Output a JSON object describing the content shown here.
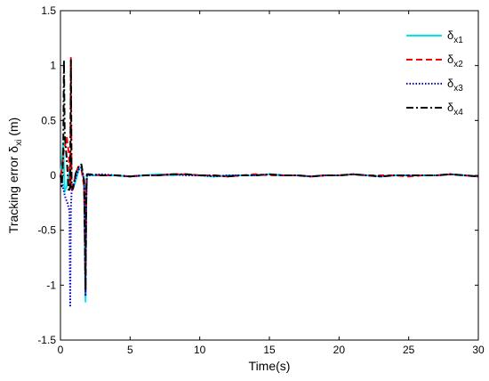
{
  "chart_data": {
    "type": "line",
    "xlabel": "Time(s)",
    "ylabel_main": "Tracking error δ",
    "ylabel_sub": "xi",
    "ylabel_unit": "(m)",
    "xlim": [
      0,
      30
    ],
    "ylim": [
      -1.5,
      1.5
    ],
    "xticks": [
      0,
      5,
      10,
      15,
      20,
      25,
      30
    ],
    "yticks": [
      -1.5,
      -1,
      -0.5,
      0,
      0.5,
      1,
      1.5
    ],
    "xtick_labels": [
      "0",
      "5",
      "10",
      "15",
      "20",
      "25",
      "30"
    ],
    "ytick_labels": [
      "-1.5",
      "-1",
      "-0.5",
      "0",
      "0.5",
      "1",
      "1.5"
    ],
    "grid": false,
    "legend_position": "top-right",
    "series": [
      {
        "name": "δx1",
        "name_main": "δ",
        "name_sub": "x1",
        "color": "#00e5ee",
        "dash": "solid",
        "x": [
          0,
          0.1,
          0.2,
          0.3,
          0.45,
          0.6,
          0.75,
          0.9,
          1.1,
          1.3,
          1.5,
          1.7,
          1.8,
          1.85,
          1.9,
          2.0,
          3.0,
          4.0,
          5.0,
          6.0,
          7.0,
          8.0,
          9.0,
          10.0,
          11.0,
          12.0,
          13.0,
          14.0,
          15.0,
          16.0,
          17.0,
          18.0,
          19.0,
          20.0,
          21.0,
          22.0,
          23.0,
          24.0,
          25.0,
          26.0,
          27.0,
          28.0,
          29.0,
          30.0
        ],
        "y": [
          0,
          0.12,
          0.3,
          -0.15,
          -0.1,
          0.02,
          -0.05,
          -0.12,
          -0.05,
          0.05,
          0.08,
          -0.05,
          -1.15,
          -0.3,
          0.01,
          0.0,
          0.0,
          0.0,
          -0.01,
          0.0,
          0.01,
          0.0,
          0.01,
          0.0,
          -0.01,
          0.0,
          0.0,
          0.0,
          0.01,
          0.0,
          0.0,
          -0.01,
          0.0,
          0.0,
          0.01,
          0.0,
          -0.01,
          0.0,
          0.0,
          0.0,
          0.0,
          0.01,
          0.0,
          -0.01
        ]
      },
      {
        "name": "δx2",
        "name_main": "δ",
        "name_sub": "x2",
        "color": "#ff0000",
        "dash": "dashed",
        "x": [
          0,
          0.1,
          0.2,
          0.3,
          0.45,
          0.6,
          0.7,
          0.75,
          0.8,
          0.9,
          1.1,
          1.3,
          1.5,
          1.7,
          1.8,
          1.85,
          1.9,
          2.0,
          3.0,
          4.0,
          5.0,
          6.0,
          7.0,
          8.0,
          9.0,
          10.0,
          11.0,
          12.0,
          13.0,
          14.0,
          15.0,
          16.0,
          17.0,
          18.0,
          19.0,
          20.0,
          21.0,
          22.0,
          23.0,
          24.0,
          25.0,
          26.0,
          27.0,
          28.0,
          29.0,
          30.0
        ],
        "y": [
          0,
          0.05,
          0.2,
          0.25,
          0.35,
          0.2,
          -0.1,
          1.07,
          -0.15,
          -0.12,
          0.02,
          0.08,
          0.06,
          -0.1,
          -1.05,
          -0.2,
          0.0,
          0.01,
          0.0,
          0.0,
          -0.01,
          0.0,
          0.0,
          0.01,
          0.01,
          0.0,
          0.0,
          -0.01,
          0.0,
          0.01,
          0.0,
          0.0,
          0.0,
          -0.01,
          0.0,
          0.0,
          0.01,
          0.0,
          0.0,
          0.0,
          -0.01,
          0.0,
          0.0,
          0.01,
          0.0,
          -0.01
        ]
      },
      {
        "name": "δx3",
        "name_main": "δ",
        "name_sub": "x3",
        "color": "#0000cc",
        "dash": "dotted",
        "x": [
          0,
          0.1,
          0.2,
          0.3,
          0.4,
          0.5,
          0.6,
          0.65,
          0.7,
          0.75,
          0.8,
          0.9,
          1.1,
          1.3,
          1.5,
          1.7,
          1.8,
          1.85,
          1.9,
          2.0,
          3.0,
          4.0,
          5.0,
          6.0,
          7.0,
          8.0,
          9.0,
          10.0,
          11.0,
          12.0,
          13.0,
          14.0,
          15.0,
          16.0,
          17.0,
          18.0,
          19.0,
          20.0,
          21.0,
          22.0,
          23.0,
          24.0,
          25.0,
          26.0,
          27.0,
          28.0,
          29.0,
          30.0
        ],
        "y": [
          0,
          -0.05,
          -0.12,
          -0.18,
          -0.22,
          -0.25,
          -0.3,
          -0.32,
          -1.2,
          -0.3,
          -0.15,
          -0.1,
          -0.02,
          0.05,
          0.07,
          -0.05,
          -1.1,
          -0.25,
          0.0,
          0.0,
          0.01,
          0.0,
          -0.01,
          0.0,
          0.0,
          0.01,
          0.0,
          0.0,
          -0.01,
          0.0,
          0.0,
          0.0,
          0.01,
          0.0,
          0.0,
          -0.01,
          0.0,
          0.0,
          0.01,
          0.0,
          -0.01,
          0.0,
          0.0,
          0.0,
          0.0,
          0.01,
          0.0,
          -0.01
        ]
      },
      {
        "name": "δx4",
        "name_main": "δ",
        "name_sub": "x4",
        "color": "#000000",
        "dash": "dashdot",
        "x": [
          0,
          0.1,
          0.2,
          0.25,
          0.3,
          0.35,
          0.45,
          0.6,
          0.7,
          0.75,
          0.8,
          0.9,
          1.1,
          1.3,
          1.5,
          1.7,
          1.8,
          1.85,
          1.9,
          2.0,
          3.0,
          4.0,
          5.0,
          6.0,
          7.0,
          8.0,
          9.0,
          10.0,
          11.0,
          12.0,
          13.0,
          14.0,
          15.0,
          16.0,
          17.0,
          18.0,
          19.0,
          20.0,
          21.0,
          22.0,
          23.0,
          24.0,
          25.0,
          26.0,
          27.0,
          28.0,
          29.0,
          30.0
        ],
        "y": [
          0,
          -0.1,
          0.2,
          1.05,
          0.4,
          0.3,
          0.15,
          -0.15,
          -0.1,
          1.05,
          -0.1,
          -0.12,
          0.02,
          0.08,
          0.1,
          -0.05,
          -1.05,
          -0.15,
          0.01,
          0.01,
          0.0,
          0.0,
          -0.01,
          0.0,
          0.0,
          0.01,
          0.01,
          0.0,
          0.0,
          -0.01,
          0.0,
          0.0,
          0.01,
          0.0,
          0.0,
          -0.01,
          0.0,
          0.0,
          0.01,
          0.0,
          -0.01,
          0.0,
          0.0,
          0.0,
          0.0,
          0.01,
          0.0,
          -0.01
        ]
      }
    ]
  }
}
